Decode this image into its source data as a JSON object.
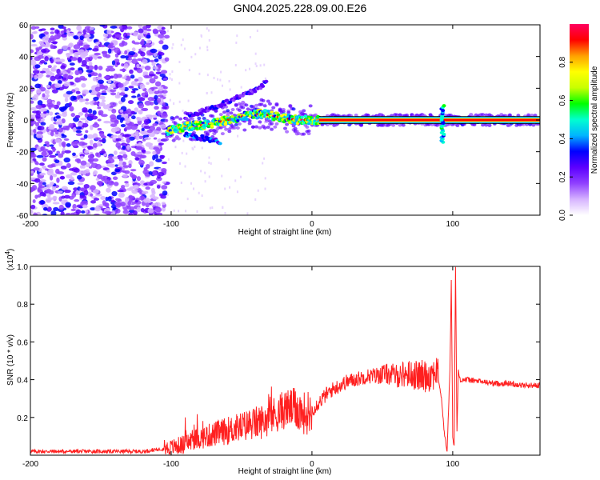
{
  "title": "GN04.2025.228.09.00.E26",
  "chart_data": [
    {
      "type": "heatmap",
      "xlabel": "Height of straight line (km)",
      "ylabel": "Frequency (Hz)",
      "xlim": [
        -200,
        162
      ],
      "ylim": [
        -60,
        60
      ],
      "xticks": [
        -200,
        -100,
        0,
        100
      ],
      "yticks": [
        -60,
        -40,
        -20,
        0,
        20,
        40,
        60
      ],
      "colorbar": {
        "label": "Normalized spectral amplitude",
        "range": [
          0.0,
          1.0
        ],
        "ticks": [
          "0.0",
          "0.2",
          "0.4",
          "0.6",
          "0.8"
        ],
        "colors": [
          "#ffffff",
          "#d6b3ff",
          "#9040ff",
          "#5c00ff",
          "#0000ff",
          "#00b4ff",
          "#00ffd0",
          "#00ff00",
          "#c8ff00",
          "#ffff00",
          "#ffa000",
          "#ff0000",
          "#ff0060"
        ]
      },
      "features": {
        "noise_region_km": [
          -200,
          -103
        ],
        "ridge_points": [
          {
            "x": -103,
            "y": -7
          },
          {
            "x": -90,
            "y": -4
          },
          {
            "x": -75,
            "y": -3
          },
          {
            "x": -60,
            "y": 0
          },
          {
            "x": -45,
            "y": 3
          },
          {
            "x": -35,
            "y": 4
          },
          {
            "x": -25,
            "y": 2
          },
          {
            "x": -10,
            "y": 0
          },
          {
            "x": 5,
            "y": 0
          },
          {
            "x": 30,
            "y": 0
          },
          {
            "x": 60,
            "y": 0
          },
          {
            "x": 90,
            "y": 0
          },
          {
            "x": 162,
            "y": 0
          }
        ],
        "upper_arc_points": [
          {
            "x": -90,
            "y": 2
          },
          {
            "x": -70,
            "y": 8
          },
          {
            "x": -55,
            "y": 13
          },
          {
            "x": -42,
            "y": 18
          },
          {
            "x": -32,
            "y": 24
          }
        ],
        "lower_arc_points": [
          {
            "x": -90,
            "y": -9
          },
          {
            "x": -75,
            "y": -12
          },
          {
            "x": -65,
            "y": -14
          }
        ],
        "spike_km": 93,
        "spike_freq_range": [
          -14,
          9
        ]
      }
    },
    {
      "type": "line",
      "xlabel": "Height of straight line (km)",
      "ylabel": "SNR (10 * v/v)",
      "yscale_label": "(x10^4)",
      "xlim": [
        -200,
        162
      ],
      "ylim": [
        0,
        1.0
      ],
      "xticks": [
        -200,
        -100,
        0,
        100
      ],
      "yticks": [
        0.2,
        0.4,
        0.6,
        0.8,
        1.0
      ],
      "color": "#ff2020",
      "series": [
        {
          "x": [
            -200,
            -180,
            -160,
            -140,
            -120,
            -110,
            -100,
            -95,
            -90,
            -85,
            -80,
            -75,
            -70,
            -65,
            -60,
            -55,
            -50,
            -45,
            -40,
            -35,
            -30,
            -25,
            -20,
            -15,
            -10,
            -5,
            0,
            5,
            10,
            15,
            20,
            25,
            30,
            35,
            40,
            45,
            50,
            55,
            60,
            65,
            70,
            75,
            80,
            85,
            88,
            90,
            92,
            94,
            96,
            98,
            99,
            100,
            101,
            102,
            103,
            104,
            105,
            110,
            120,
            130,
            140,
            150,
            162
          ],
          "values": [
            0.02,
            0.02,
            0.02,
            0.02,
            0.02,
            0.03,
            0.04,
            0.05,
            0.06,
            0.08,
            0.09,
            0.1,
            0.11,
            0.12,
            0.13,
            0.14,
            0.15,
            0.16,
            0.17,
            0.18,
            0.2,
            0.22,
            0.24,
            0.25,
            0.24,
            0.22,
            0.24,
            0.28,
            0.32,
            0.35,
            0.37,
            0.39,
            0.4,
            0.41,
            0.42,
            0.42,
            0.43,
            0.43,
            0.42,
            0.43,
            0.43,
            0.42,
            0.42,
            0.43,
            0.45,
            0.4,
            0.3,
            0.12,
            0.02,
            0.45,
            0.92,
            0.1,
            0.05,
            1.0,
            0.12,
            0.45,
            0.4,
            0.4,
            0.39,
            0.38,
            0.38,
            0.37,
            0.37
          ]
        }
      ]
    }
  ]
}
